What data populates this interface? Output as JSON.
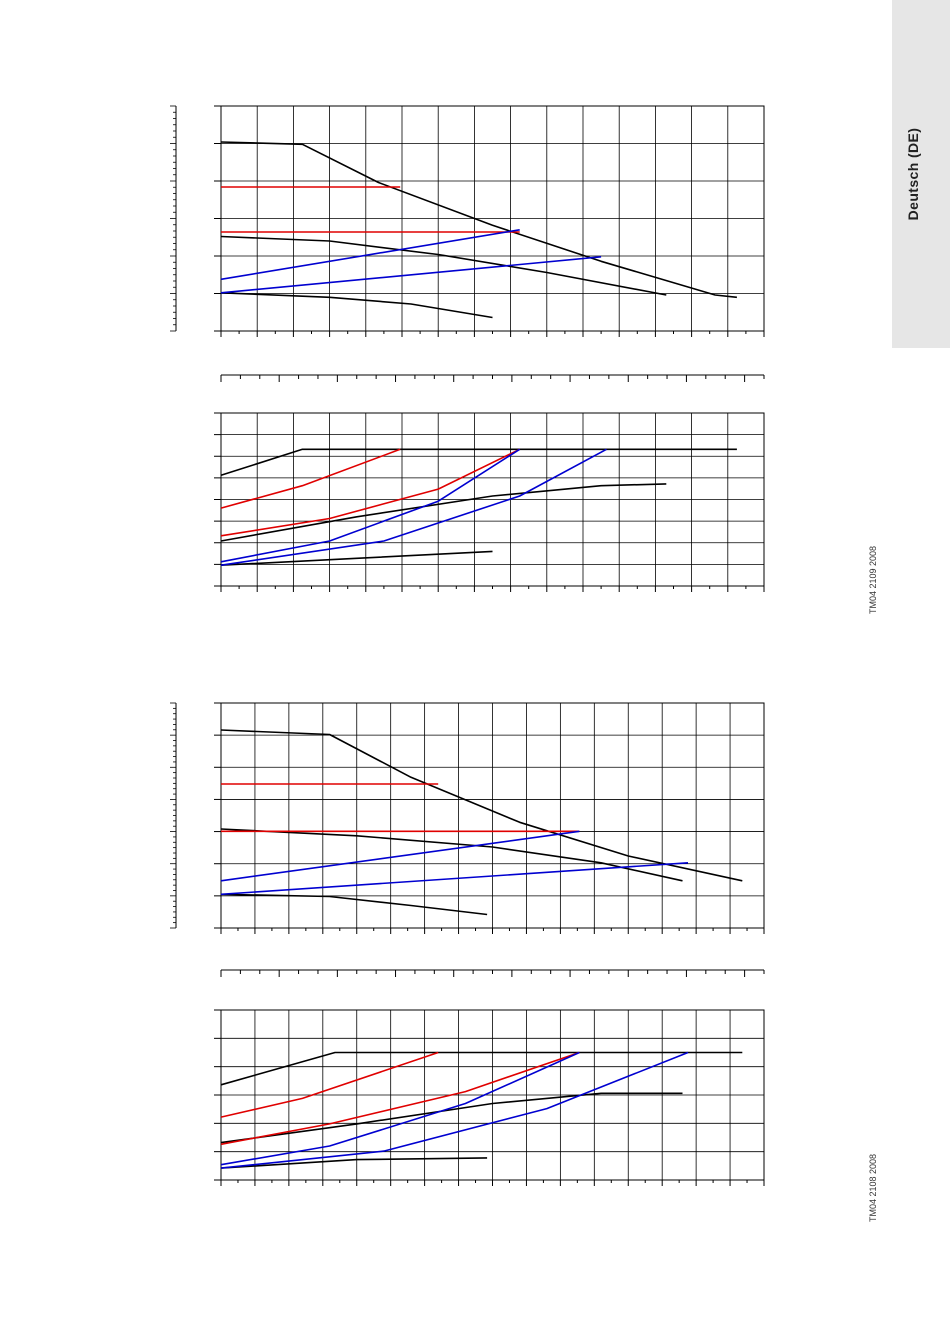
{
  "side_tab": {
    "label": "Deutsch (DE)"
  },
  "figure_codes": [
    "TM04 2109 2008",
    "TM04 2108 2008"
  ],
  "colors": {
    "curve": "#000000",
    "red_curve": "#e00000",
    "blue_curve": "#0000d0",
    "grid": "#000000"
  },
  "chart_data": [
    {
      "type": "line",
      "panel": "upper head chart",
      "x_range": [
        0,
        1
      ],
      "y_range": [
        0,
        1
      ],
      "grid_cols": 15,
      "grid_rows": 6,
      "series": [
        {
          "color": "black",
          "x": [
            0,
            0.15,
            0.29,
            0.5,
            0.7,
            0.91,
            0.95
          ],
          "y": [
            0.84,
            0.83,
            0.66,
            0.47,
            0.31,
            0.16,
            0.15
          ]
        },
        {
          "color": "black",
          "x": [
            0,
            0.2,
            0.4,
            0.6,
            0.82
          ],
          "y": [
            0.42,
            0.4,
            0.34,
            0.26,
            0.16
          ]
        },
        {
          "color": "black",
          "x": [
            0,
            0.2,
            0.35,
            0.5
          ],
          "y": [
            0.17,
            0.15,
            0.12,
            0.06
          ]
        },
        {
          "color": "red",
          "x": [
            0,
            0.33
          ],
          "y": [
            0.64,
            0.64
          ]
        },
        {
          "color": "red",
          "x": [
            0,
            0.55
          ],
          "y": [
            0.44,
            0.44
          ]
        },
        {
          "color": "blue",
          "x": [
            0,
            0.55
          ],
          "y": [
            0.23,
            0.45
          ]
        },
        {
          "color": "blue",
          "x": [
            0,
            0.7
          ],
          "y": [
            0.17,
            0.33
          ]
        }
      ]
    },
    {
      "type": "line",
      "panel": "upper power chart",
      "x_range": [
        0,
        1
      ],
      "y_range": [
        0,
        1
      ],
      "grid_cols": 15,
      "grid_rows": 8,
      "series": [
        {
          "color": "black",
          "x": [
            0,
            0.15,
            0.95
          ],
          "y": [
            0.64,
            0.79,
            0.79
          ]
        },
        {
          "color": "black",
          "x": [
            0,
            0.25,
            0.5,
            0.7,
            0.82
          ],
          "y": [
            0.26,
            0.4,
            0.52,
            0.58,
            0.59
          ]
        },
        {
          "color": "black",
          "x": [
            0,
            0.25,
            0.5
          ],
          "y": [
            0.12,
            0.16,
            0.2
          ]
        },
        {
          "color": "red",
          "x": [
            0,
            0.15,
            0.33
          ],
          "y": [
            0.45,
            0.58,
            0.79
          ]
        },
        {
          "color": "red",
          "x": [
            0,
            0.2,
            0.4,
            0.55
          ],
          "y": [
            0.29,
            0.39,
            0.56,
            0.79
          ]
        },
        {
          "color": "blue",
          "x": [
            0,
            0.2,
            0.4,
            0.55
          ],
          "y": [
            0.14,
            0.26,
            0.49,
            0.79
          ]
        },
        {
          "color": "blue",
          "x": [
            0,
            0.3,
            0.55,
            0.71
          ],
          "y": [
            0.12,
            0.26,
            0.52,
            0.79
          ]
        }
      ]
    },
    {
      "type": "line",
      "panel": "lower head chart",
      "x_range": [
        0,
        1
      ],
      "y_range": [
        0,
        1
      ],
      "grid_cols": 16,
      "grid_rows": 7,
      "series": [
        {
          "color": "black",
          "x": [
            0,
            0.2,
            0.35,
            0.55,
            0.75,
            0.96
          ],
          "y": [
            0.88,
            0.86,
            0.67,
            0.47,
            0.32,
            0.21
          ]
        },
        {
          "color": "black",
          "x": [
            0,
            0.25,
            0.5,
            0.7,
            0.85
          ],
          "y": [
            0.44,
            0.41,
            0.36,
            0.29,
            0.21
          ]
        },
        {
          "color": "black",
          "x": [
            0,
            0.2,
            0.35,
            0.49
          ],
          "y": [
            0.15,
            0.14,
            0.1,
            0.06
          ]
        },
        {
          "color": "red",
          "x": [
            0,
            0.4
          ],
          "y": [
            0.64,
            0.64
          ]
        },
        {
          "color": "red",
          "x": [
            0,
            0.66
          ],
          "y": [
            0.43,
            0.43
          ]
        },
        {
          "color": "blue",
          "x": [
            0,
            0.66
          ],
          "y": [
            0.21,
            0.43
          ]
        },
        {
          "color": "blue",
          "x": [
            0,
            0.86
          ],
          "y": [
            0.15,
            0.29
          ]
        }
      ]
    },
    {
      "type": "line",
      "panel": "lower power chart",
      "x_range": [
        0,
        1
      ],
      "y_range": [
        0,
        1
      ],
      "grid_cols": 16,
      "grid_rows": 6,
      "series": [
        {
          "color": "black",
          "x": [
            0,
            0.21,
            0.96
          ],
          "y": [
            0.56,
            0.75,
            0.75
          ]
        },
        {
          "color": "black",
          "x": [
            0,
            0.25,
            0.5,
            0.7,
            0.85
          ],
          "y": [
            0.22,
            0.33,
            0.45,
            0.51,
            0.51
          ]
        },
        {
          "color": "black",
          "x": [
            0,
            0.25,
            0.49
          ],
          "y": [
            0.07,
            0.12,
            0.13
          ]
        },
        {
          "color": "red",
          "x": [
            0,
            0.15,
            0.4
          ],
          "y": [
            0.37,
            0.48,
            0.75
          ]
        },
        {
          "color": "red",
          "x": [
            0,
            0.2,
            0.45,
            0.66
          ],
          "y": [
            0.21,
            0.33,
            0.52,
            0.75
          ]
        },
        {
          "color": "blue",
          "x": [
            0,
            0.2,
            0.45,
            0.66
          ],
          "y": [
            0.09,
            0.2,
            0.45,
            0.75
          ]
        },
        {
          "color": "blue",
          "x": [
            0,
            0.3,
            0.6,
            0.86
          ],
          "y": [
            0.07,
            0.17,
            0.42,
            0.75
          ]
        }
      ]
    }
  ]
}
